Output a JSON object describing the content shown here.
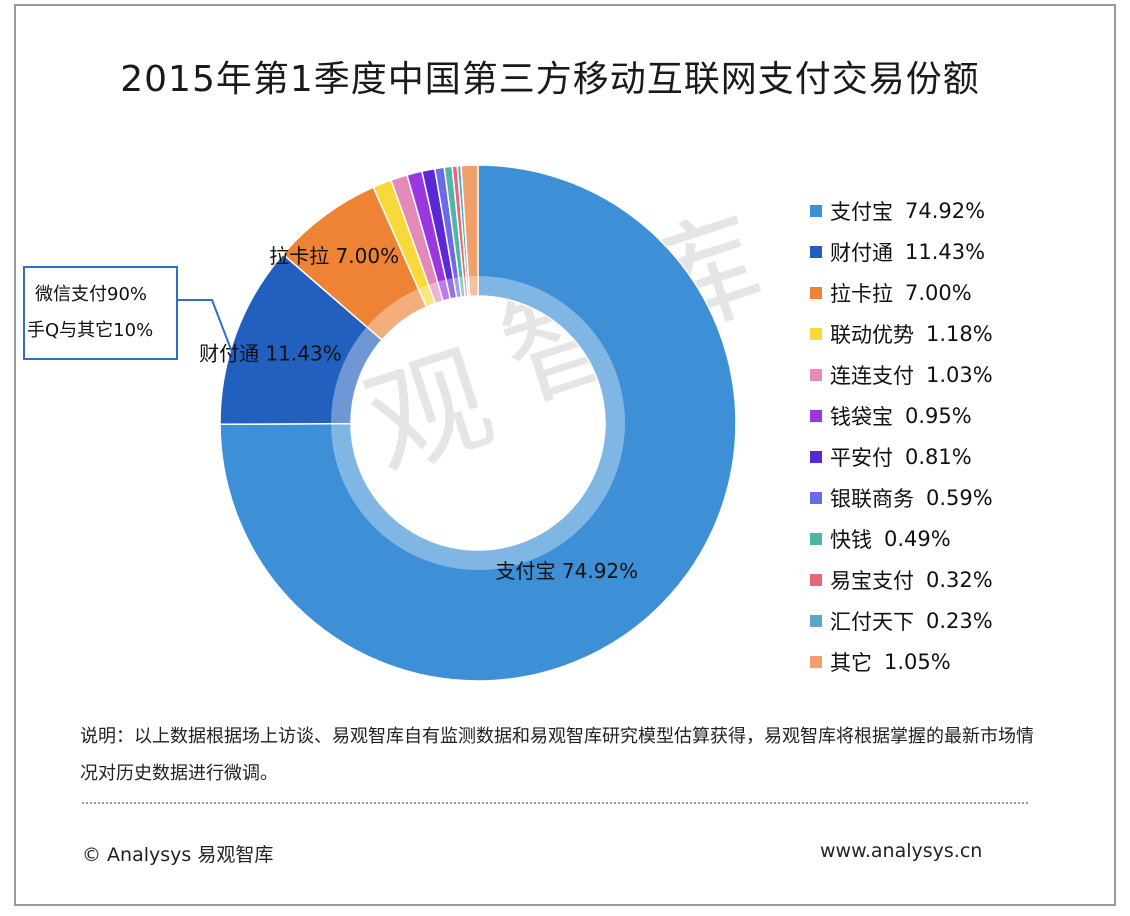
{
  "title": "2015年第1季度中国第三方移动互联网支付交易份额",
  "watermark": "易观智库",
  "callout": {
    "line1": "微信支付90%",
    "line2": "手Q与其它10%"
  },
  "note": "说明：以上数据根据场上访谈、易观智库自有监测数据和易观智库研究模型估算获得，易观智库将根据掌握的最新市场情况对历史数据进行微调。",
  "footer": {
    "copyright": "© Analysys 易观智库",
    "url": "www.analysys.cn"
  },
  "chart_data": {
    "type": "pie",
    "title": "2015年第1季度中国第三方移动互联网支付交易份额",
    "donut": true,
    "legend_position": "right",
    "categories": [
      "支付宝",
      "财付通",
      "拉卡拉",
      "联动优势",
      "连连支付",
      "钱袋宝",
      "平安付",
      "银联商务",
      "快钱",
      "易宝支付",
      "汇付天下",
      "其它"
    ],
    "values": [
      74.92,
      11.43,
      7.0,
      1.18,
      1.03,
      0.95,
      0.81,
      0.59,
      0.49,
      0.32,
      0.23,
      1.05
    ],
    "labels": [
      "74.92%",
      "11.43%",
      "7.00%",
      "1.18%",
      "1.03%",
      "0.95%",
      "0.81%",
      "0.59%",
      "0.49%",
      "0.32%",
      "0.23%",
      "1.05%"
    ],
    "data_labels": [
      {
        "index": 0,
        "text": "支付宝  74.92%"
      },
      {
        "index": 1,
        "text": "财付通  11.43%"
      },
      {
        "index": 2,
        "text": "拉卡拉  7.00%"
      }
    ],
    "colors": [
      "#3d8fd6",
      "#2260c0",
      "#ee8335",
      "#f9d93a",
      "#e38bb7",
      "#9b37e0",
      "#5a28d6",
      "#6b6be8",
      "#4fb5a6",
      "#e8667a",
      "#5aa9c0",
      "#f0a06a"
    ]
  }
}
